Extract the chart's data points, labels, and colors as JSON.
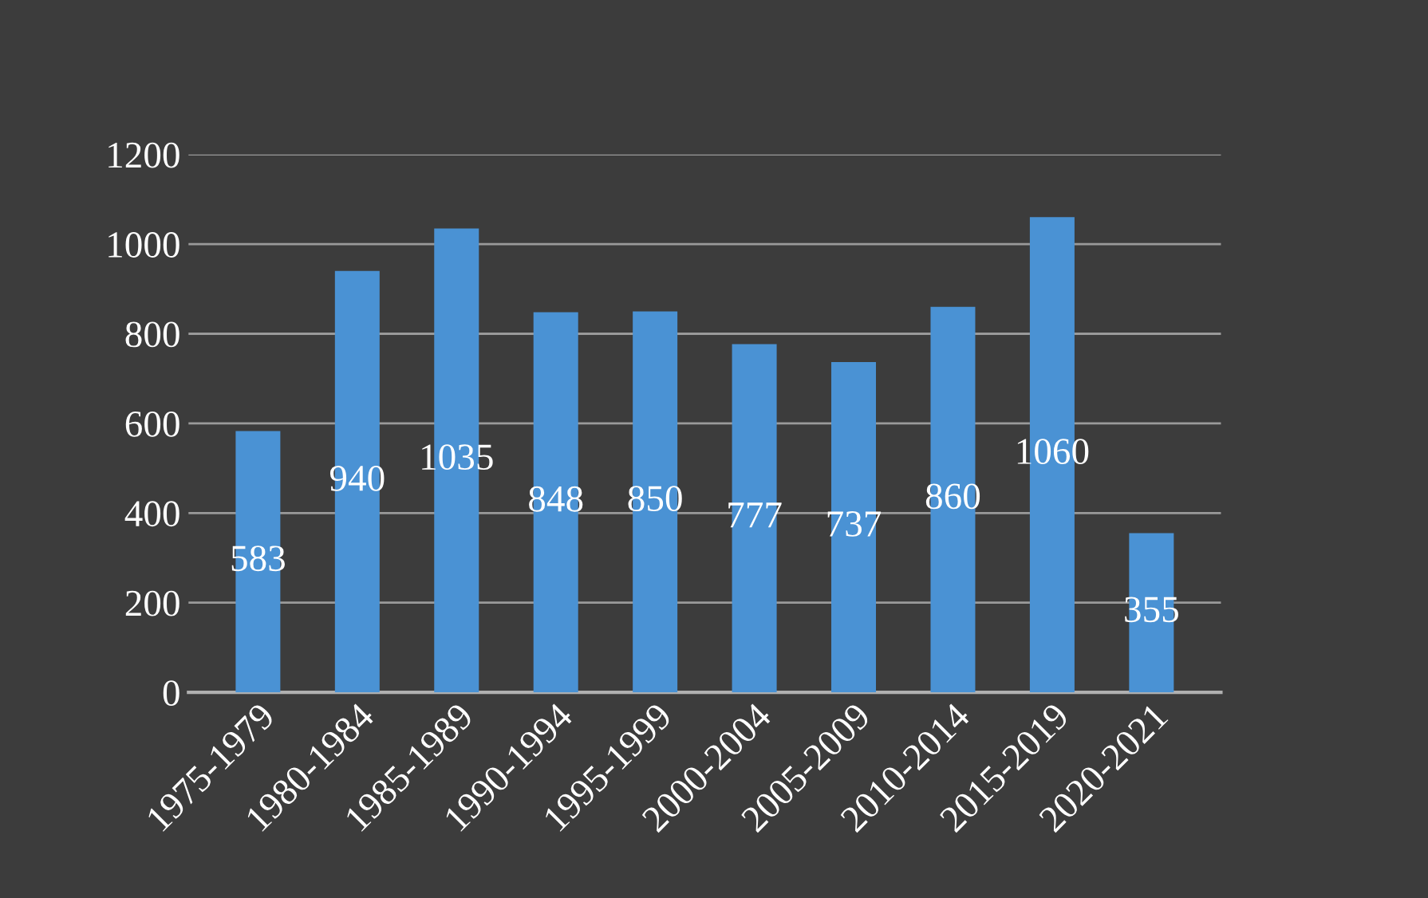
{
  "chart_data": {
    "type": "bar",
    "categories": [
      "1975-1979",
      "1980-1984",
      "1985-1989",
      "1990-1994",
      "1995-1999",
      "2000-2004",
      "2005-2009",
      "2010-2014",
      "2015-2019",
      "2020-2021"
    ],
    "values": [
      583,
      940,
      1035,
      848,
      850,
      777,
      737,
      860,
      1060,
      355
    ],
    "color": "#4a92d4",
    "ylim": [
      0,
      1200
    ],
    "yticks": [
      0,
      200,
      400,
      600,
      800,
      1000,
      1200
    ],
    "grid": "y",
    "data_labels": true
  }
}
